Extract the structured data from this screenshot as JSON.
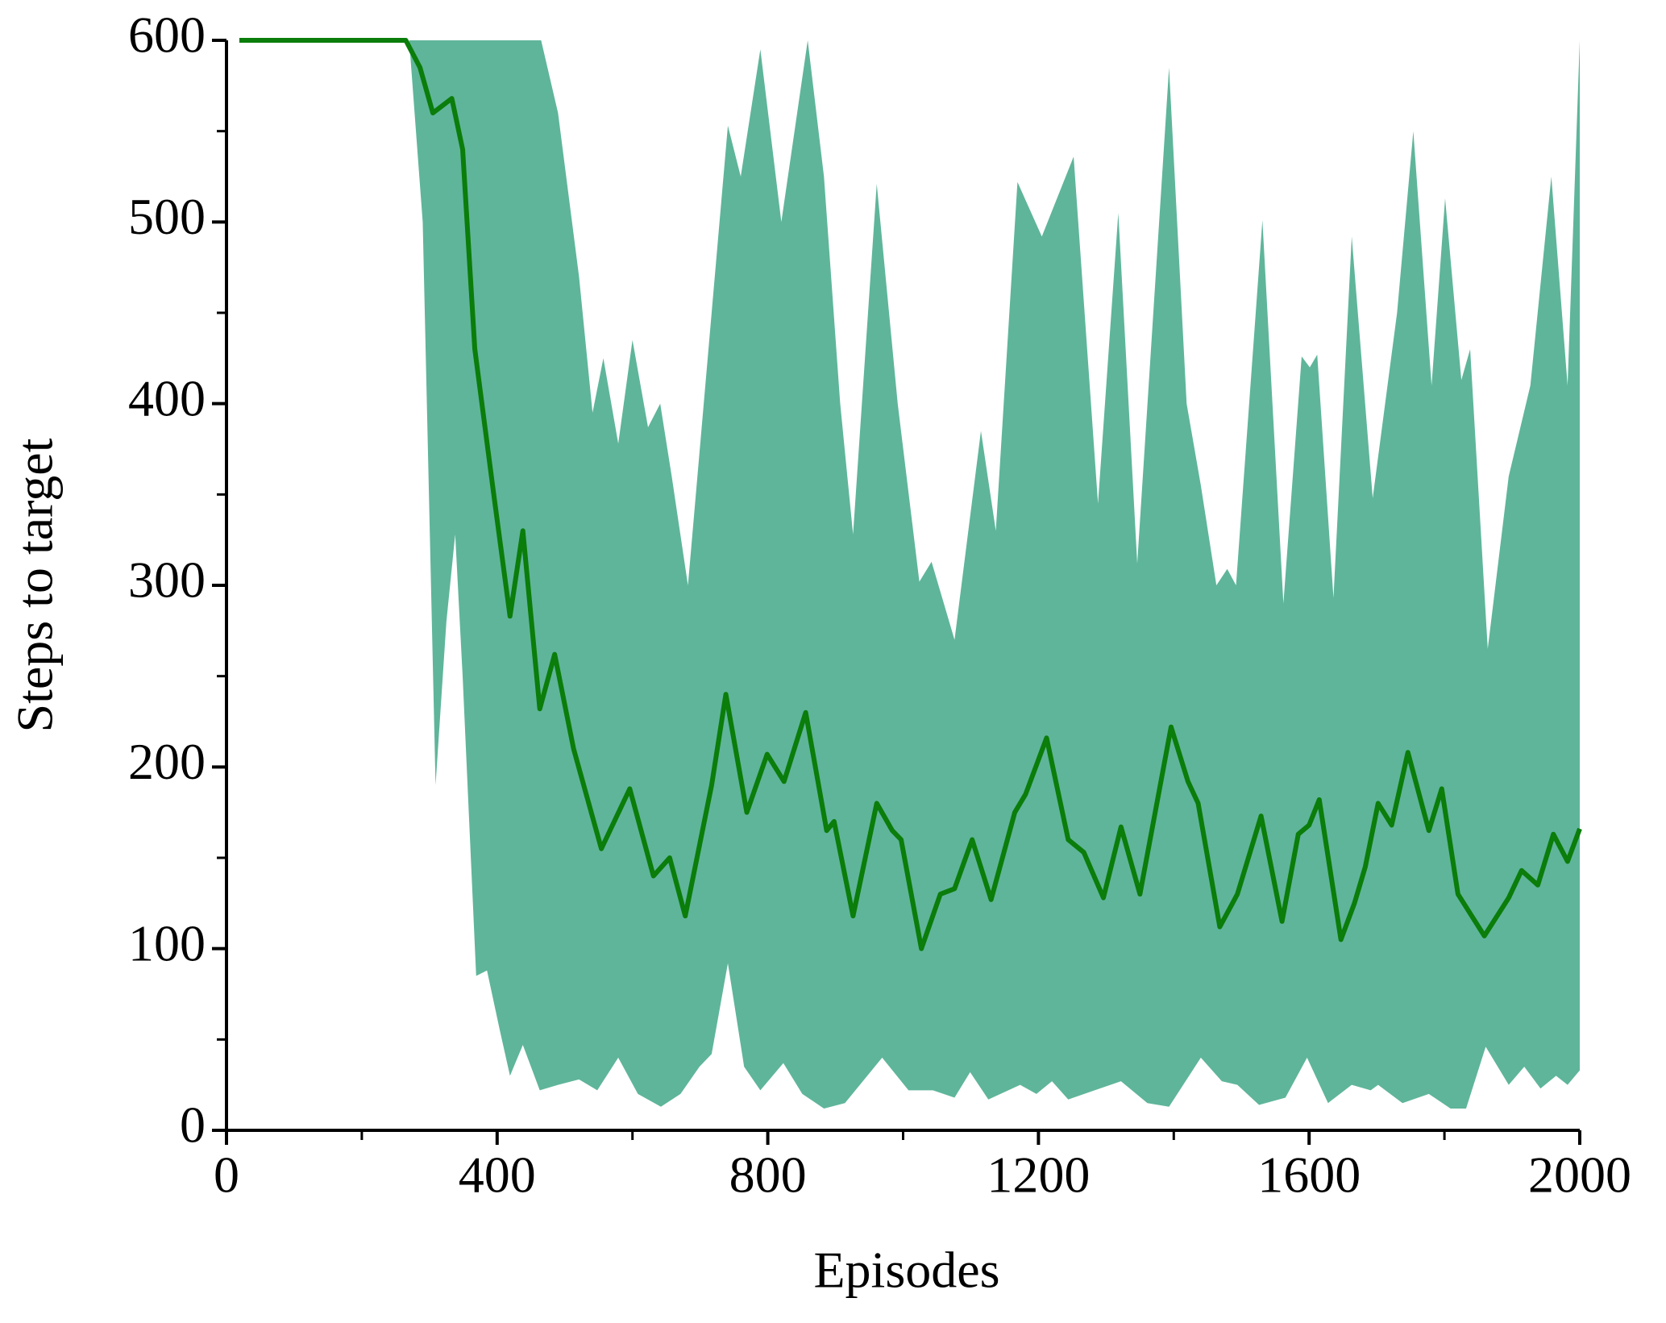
{
  "chart_data": {
    "type": "line",
    "x_label": "Episodes",
    "y_label": "Steps to target",
    "xlim": [
      0,
      2000
    ],
    "ylim": [
      0,
      600
    ],
    "xticks": [
      0,
      400,
      800,
      1200,
      1600,
      2000
    ],
    "x_minor_ticks": [
      200,
      600,
      1000,
      1400,
      1800
    ],
    "yticks": [
      0,
      100,
      200,
      300,
      400,
      500,
      600
    ],
    "y_minor_ticks": [
      50,
      150,
      250,
      350,
      450,
      550
    ],
    "series": [
      {
        "color": "#0a7d0a",
        "x": [
          19,
          265,
          286,
          305,
          333,
          349,
          367,
          395,
          419,
          438,
          463,
          485,
          513,
          554,
          596,
          631,
          655,
          678,
          717,
          738,
          769,
          799,
          824,
          856,
          887,
          898,
          926,
          961,
          984,
          997,
          1027,
          1055,
          1076,
          1102,
          1130,
          1165,
          1181,
          1212,
          1244,
          1267,
          1296,
          1322,
          1350,
          1396,
          1421,
          1436,
          1468,
          1494,
          1529,
          1560,
          1584,
          1600,
          1615,
          1647,
          1667,
          1683,
          1702,
          1722,
          1746,
          1777,
          1796,
          1820,
          1859,
          1895,
          1914,
          1938,
          1961,
          1982,
          2000
        ],
        "values": [
          600,
          600,
          585,
          560,
          568,
          540,
          430,
          350,
          283,
          330,
          232,
          262,
          210,
          155,
          188,
          140,
          150,
          118,
          190,
          240,
          175,
          207,
          192,
          230,
          165,
          170,
          118,
          180,
          165,
          160,
          100,
          130,
          133,
          160,
          127,
          175,
          185,
          216,
          160,
          153,
          128,
          167,
          130,
          222,
          192,
          180,
          112,
          130,
          173,
          115,
          163,
          168,
          182,
          105,
          125,
          145,
          180,
          168,
          208,
          165,
          188,
          130,
          107,
          128,
          143,
          135,
          163,
          148,
          166
        ]
      }
    ],
    "band": {
      "color": "#5fb59a",
      "upper": {
        "x": [
          19,
          465,
          490,
          521,
          541,
          557,
          579,
          600,
          623,
          641,
          658,
          682,
          710,
          741,
          760,
          789,
          820,
          859,
          883,
          907,
          926,
          961,
          992,
          1024,
          1042,
          1076,
          1115,
          1137,
          1169,
          1205,
          1252,
          1288,
          1318,
          1346,
          1393,
          1419,
          1440,
          1463,
          1479,
          1492,
          1531,
          1562,
          1589,
          1601,
          1612,
          1636,
          1663,
          1694,
          1730,
          1754,
          1781,
          1801,
          1825,
          1838,
          1864,
          1895,
          1927,
          1958,
          1982,
          2000
        ],
        "values": [
          600,
          600,
          560,
          470,
          395,
          425,
          378,
          435,
          387,
          400,
          360,
          300,
          420,
          553,
          525,
          595,
          500,
          600,
          525,
          400,
          328,
          521,
          400,
          302,
          313,
          270,
          385,
          330,
          522,
          492,
          536,
          345,
          505,
          312,
          585,
          400,
          355,
          300,
          309,
          300,
          501,
          290,
          426,
          420,
          427,
          293,
          492,
          348,
          450,
          550,
          410,
          513,
          413,
          430,
          265,
          360,
          410,
          525,
          410,
          600
        ]
      },
      "lower": {
        "x": [
          19,
          270,
          290,
          309,
          325,
          338,
          349,
          369,
          385,
          404,
          419,
          438,
          463,
          490,
          521,
          548,
          579,
          608,
          642,
          671,
          699,
          717,
          741,
          765,
          789,
          823,
          851,
          883,
          914,
          969,
          1008,
          1044,
          1076,
          1099,
          1126,
          1173,
          1197,
          1220,
          1244,
          1283,
          1322,
          1361,
          1393,
          1440,
          1471,
          1494,
          1526,
          1565,
          1597,
          1628,
          1663,
          1691,
          1702,
          1738,
          1777,
          1809,
          1832,
          1861,
          1895,
          1918,
          1942,
          1965,
          1982,
          2000
        ],
        "values": [
          600,
          600,
          500,
          190,
          280,
          328,
          250,
          85,
          88,
          55,
          30,
          47,
          22,
          25,
          28,
          22,
          40,
          20,
          13,
          20,
          35,
          42,
          92,
          35,
          22,
          37,
          20,
          12,
          15,
          40,
          22,
          22,
          18,
          32,
          17,
          25,
          20,
          27,
          17,
          22,
          27,
          15,
          13,
          40,
          27,
          25,
          14,
          18,
          40,
          15,
          25,
          22,
          25,
          15,
          20,
          12,
          12,
          46,
          25,
          35,
          23,
          30,
          25,
          33
        ]
      }
    }
  }
}
